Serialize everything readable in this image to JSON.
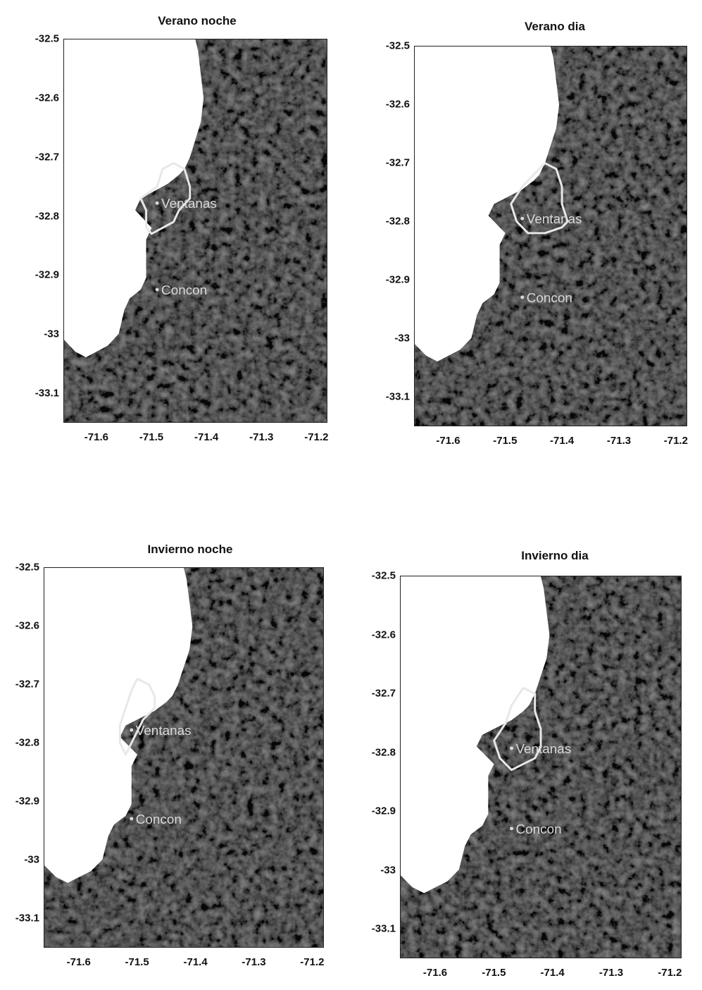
{
  "panels": [
    {
      "title": "Verano noche",
      "places": [
        {
          "name": "Ventanas",
          "lon": -71.49,
          "lat": -32.778
        },
        {
          "name": "Concon",
          "lon": -71.49,
          "lat": -32.925
        }
      ],
      "contour": [
        [
          -71.46,
          -32.71
        ],
        [
          -71.44,
          -32.72
        ],
        [
          -71.43,
          -32.75
        ],
        [
          -71.43,
          -32.77
        ],
        [
          -71.45,
          -32.79
        ],
        [
          -71.46,
          -32.81
        ],
        [
          -71.48,
          -32.82
        ],
        [
          -71.5,
          -32.83
        ],
        [
          -71.51,
          -32.82
        ],
        [
          -71.51,
          -32.79
        ],
        [
          -71.52,
          -32.77
        ],
        [
          -71.49,
          -32.75
        ],
        [
          -71.48,
          -32.72
        ],
        [
          -71.46,
          -32.71
        ]
      ]
    },
    {
      "title": "Verano dia",
      "places": [
        {
          "name": "Ventanas",
          "lon": -71.47,
          "lat": -32.795
        },
        {
          "name": "Concon",
          "lon": -71.47,
          "lat": -32.93
        }
      ],
      "contour": [
        [
          -71.43,
          -32.7
        ],
        [
          -71.41,
          -32.71
        ],
        [
          -71.4,
          -32.74
        ],
        [
          -71.4,
          -32.77
        ],
        [
          -71.39,
          -32.8
        ],
        [
          -71.4,
          -32.81
        ],
        [
          -71.43,
          -32.82
        ],
        [
          -71.46,
          -32.82
        ],
        [
          -71.48,
          -32.8
        ],
        [
          -71.49,
          -32.77
        ],
        [
          -71.47,
          -32.74
        ],
        [
          -71.45,
          -32.72
        ],
        [
          -71.43,
          -32.7
        ]
      ]
    },
    {
      "title": "Invierno noche",
      "places": [
        {
          "name": "Ventanas",
          "lon": -71.51,
          "lat": -32.778
        },
        {
          "name": "Concon",
          "lon": -71.51,
          "lat": -32.93
        }
      ],
      "contour": [
        [
          -71.5,
          -32.69
        ],
        [
          -71.48,
          -32.7
        ],
        [
          -71.47,
          -32.72
        ],
        [
          -71.47,
          -32.74
        ],
        [
          -71.49,
          -32.76
        ],
        [
          -71.5,
          -32.78
        ],
        [
          -71.51,
          -32.8
        ],
        [
          -71.52,
          -32.82
        ],
        [
          -71.53,
          -32.8
        ],
        [
          -71.53,
          -32.77
        ],
        [
          -71.52,
          -32.74
        ],
        [
          -71.51,
          -32.71
        ],
        [
          -71.5,
          -32.69
        ]
      ]
    },
    {
      "title": "Invierno dia",
      "places": [
        {
          "name": "Ventanas",
          "lon": -71.47,
          "lat": -32.793
        },
        {
          "name": "Concon",
          "lon": -71.47,
          "lat": -32.93
        }
      ],
      "contour": [
        [
          -71.45,
          -32.69
        ],
        [
          -71.43,
          -32.7
        ],
        [
          -71.43,
          -32.73
        ],
        [
          -71.42,
          -32.76
        ],
        [
          -71.42,
          -32.79
        ],
        [
          -71.43,
          -32.81
        ],
        [
          -71.45,
          -32.82
        ],
        [
          -71.47,
          -32.83
        ],
        [
          -71.49,
          -32.81
        ],
        [
          -71.5,
          -32.78
        ],
        [
          -71.48,
          -32.75
        ],
        [
          -71.47,
          -32.72
        ],
        [
          -71.45,
          -32.69
        ]
      ]
    }
  ],
  "axes": {
    "x_ticks": [
      "-71.6",
      "-71.5",
      "-71.4",
      "-71.3",
      "-71.2"
    ],
    "y_ticks": [
      "-32.5",
      "-32.6",
      "-32.7",
      "-32.8",
      "-32.9",
      "-33",
      "-33.1"
    ],
    "x_values": [
      -71.6,
      -71.5,
      -71.4,
      -71.3,
      -71.2
    ],
    "y_values": [
      -32.5,
      -32.6,
      -32.7,
      -32.8,
      -32.9,
      -33.0,
      -33.1
    ],
    "lon_range": [
      -71.66,
      -71.18
    ],
    "lat_range": [
      -32.5,
      -33.15
    ]
  },
  "coastline": [
    [
      -71.66,
      -33.01
    ],
    [
      -71.64,
      -33.03
    ],
    [
      -71.62,
      -33.04
    ],
    [
      -71.6,
      -33.03
    ],
    [
      -71.58,
      -33.02
    ],
    [
      -71.56,
      -33.0
    ],
    [
      -71.55,
      -32.96
    ],
    [
      -71.54,
      -32.94
    ],
    [
      -71.52,
      -32.925
    ],
    [
      -71.51,
      -32.905
    ],
    [
      -71.51,
      -32.88
    ],
    [
      -71.51,
      -32.84
    ],
    [
      -71.5,
      -32.82
    ],
    [
      -71.52,
      -32.8
    ],
    [
      -71.53,
      -32.79
    ],
    [
      -71.52,
      -32.77
    ],
    [
      -71.5,
      -32.76
    ],
    [
      -71.48,
      -32.75
    ],
    [
      -71.47,
      -32.745
    ],
    [
      -71.45,
      -32.73
    ],
    [
      -71.44,
      -32.72
    ],
    [
      -71.43,
      -32.7
    ],
    [
      -71.42,
      -32.67
    ],
    [
      -71.41,
      -32.64
    ],
    [
      -71.405,
      -32.6
    ],
    [
      -71.41,
      -32.56
    ],
    [
      -71.415,
      -32.52
    ],
    [
      -71.42,
      -32.5
    ]
  ],
  "colors": {
    "land": "#101010",
    "sea": "#ffffff",
    "contour": "#e8e8e8",
    "label": "#d9d9d9"
  }
}
